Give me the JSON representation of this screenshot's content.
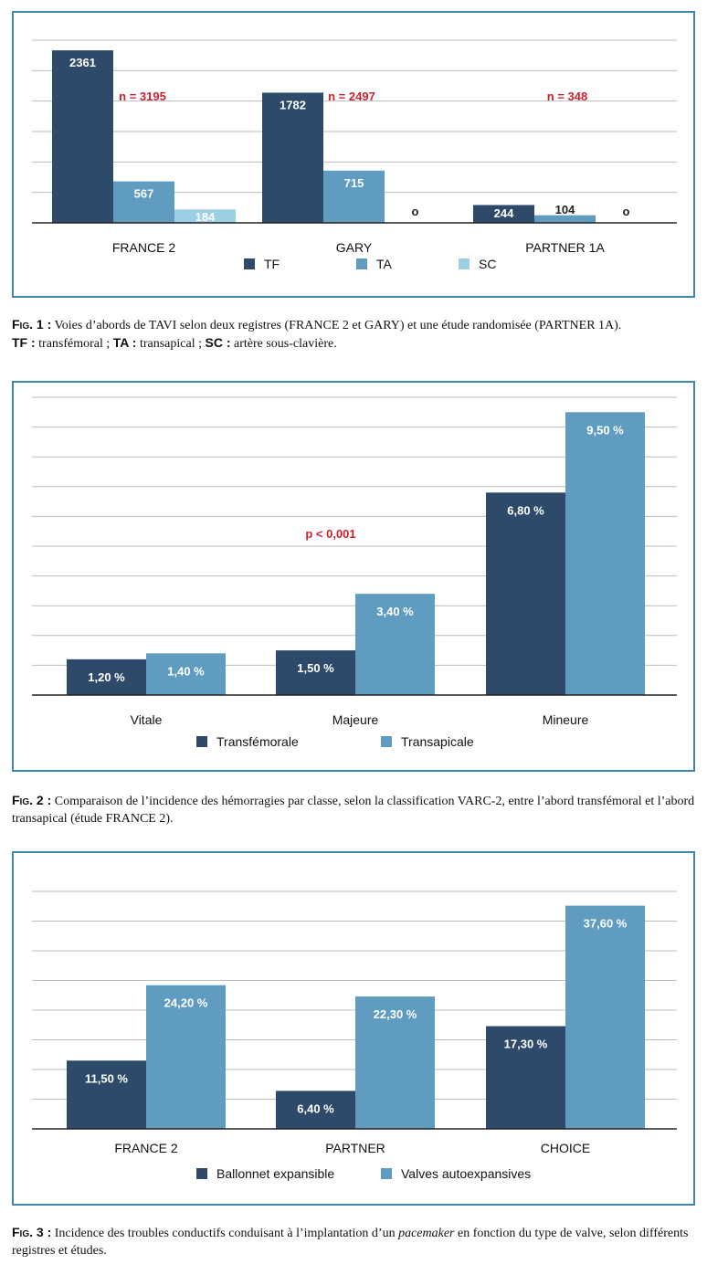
{
  "colors": {
    "dark": "#2e4a6b",
    "mid": "#5f9cc0",
    "light": "#9bd0e4",
    "grid": "#bdbdbd",
    "axis": "#222222",
    "annot": "#d0202e",
    "frame": "#3f87ad"
  },
  "chart_data": [
    {
      "type": "bar",
      "categories": [
        "FRANCE 2",
        "GARY",
        "PARTNER 1A"
      ],
      "series": [
        {
          "name": "TF",
          "values": [
            2361,
            1782,
            244
          ],
          "labels": [
            "2361",
            "1782",
            "244"
          ]
        },
        {
          "name": "TA",
          "values": [
            567,
            715,
            104
          ],
          "labels": [
            "567",
            "715",
            "104"
          ]
        },
        {
          "name": "SC",
          "values": [
            184,
            0,
            0
          ],
          "labels": [
            "184",
            "o",
            "o"
          ]
        }
      ],
      "ylim": [
        0,
        2500
      ],
      "grid": true,
      "annotations": [
        "n = 3195",
        "n = 2497",
        "n = 348"
      ],
      "legend_position": "bottom"
    },
    {
      "type": "bar",
      "categories": [
        "Vitale",
        "Majeure",
        "Mineure"
      ],
      "series": [
        {
          "name": "Transfémorale",
          "values": [
            1.2,
            1.5,
            6.8
          ],
          "labels": [
            "1,20 %",
            "1,50 %",
            "6,80 %"
          ]
        },
        {
          "name": "Transapicale",
          "values": [
            1.4,
            3.4,
            9.5
          ],
          "labels": [
            "1,40 %",
            "3,40 %",
            "9,50 %"
          ]
        }
      ],
      "ylim": [
        0,
        10
      ],
      "grid": true,
      "annotations": [
        "p < 0,001"
      ],
      "legend_position": "bottom"
    },
    {
      "type": "bar",
      "categories": [
        "FRANCE 2",
        "PARTNER",
        "CHOICE"
      ],
      "series": [
        {
          "name": "Ballonnet expansible",
          "values": [
            11.5,
            6.4,
            17.3
          ],
          "labels": [
            "11,50 %",
            "6,40 %",
            "17,30 %"
          ]
        },
        {
          "name": "Valves autoexpansives",
          "values": [
            24.2,
            22.3,
            37.6
          ],
          "labels": [
            "24,20 %",
            "22,30 %",
            "37,60 %"
          ]
        }
      ],
      "ylim": [
        0,
        40
      ],
      "grid": true,
      "legend_position": "bottom"
    }
  ],
  "captions": [
    {
      "fig": "Fig. 1 :",
      "text": "Voies d’abords de TAVI selon deux registres (FRANCE 2 et GARY) et une étude randomisée (PARTNER 1A).",
      "line2": [
        {
          "b": "TF :",
          "t": " transfémoral ; "
        },
        {
          "b": "TA :",
          "t": " transapical ; "
        },
        {
          "b": "SC :",
          "t": " artère sous-clavière."
        }
      ]
    },
    {
      "fig": "Fig. 2 :",
      "text": "Comparaison de l’incidence des hémorragies par classe, selon la classification VARC-2, entre l’abord transfémoral et l’abord transapical (étude FRANCE 2)."
    },
    {
      "fig": "Fig. 3 :",
      "text_before": "Incidence des troubles conductifs conduisant à l’implantation d’un ",
      "text_italic": "pacemaker",
      "text_after": " en fonction du type de valve, selon différents registres et études."
    }
  ]
}
